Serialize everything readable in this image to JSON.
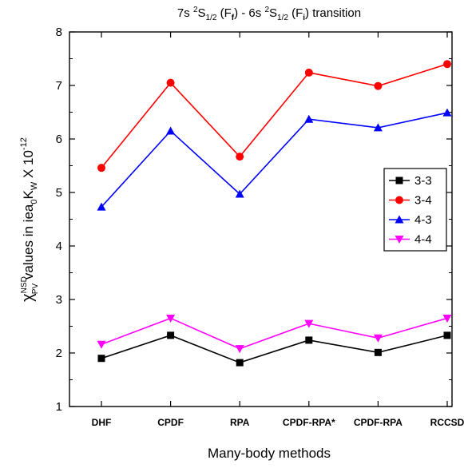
{
  "chart_data": {
    "type": "line",
    "title": "7s ²S₁/₂ (F_f) - 6s ²S₁/₂ (F_i) transition",
    "title_parts": {
      "lead": "7s ",
      "sup1": "2",
      "s1": "S",
      "sub1": "1/2",
      "mid1": " (F",
      "subf": "f",
      "mid2": ") - 6s ",
      "sup2": "2",
      "s2": "S",
      "sub2": "1/2",
      "mid3": " (F",
      "subi": "i",
      "tail": ") transition"
    },
    "xlabel": "Many-body methods",
    "ylabel": "χ_PV^NSD values in iea₀K_W X 10^-12",
    "ylabel_parts": {
      "chi": "χ",
      "sup_nsd": "NSD",
      "sub_pv": "PV",
      "mid": " values in iea",
      "sub0": "0",
      "k": "K",
      "subw": "W",
      "x10": " X 10",
      "exp": "-12"
    },
    "categories": [
      "DHF",
      "CPDF",
      "RPA",
      "CPDF-RPA*",
      "CPDF-RPA",
      "RCCSD"
    ],
    "ylim": [
      1,
      8
    ],
    "yticks": [
      "1",
      "2",
      "3",
      "4",
      "5",
      "6",
      "7",
      "8"
    ],
    "grid": false,
    "legend_position": "right",
    "series": [
      {
        "name": "3-3",
        "color": "#000000",
        "marker": "square",
        "values": [
          1.9,
          2.33,
          1.82,
          2.24,
          2.01,
          2.33
        ]
      },
      {
        "name": "3-4",
        "color": "#ff0000",
        "marker": "circle",
        "values": [
          5.46,
          7.05,
          5.67,
          7.24,
          6.99,
          7.4
        ]
      },
      {
        "name": "4-3",
        "color": "#0000ff",
        "marker": "triangle-up",
        "values": [
          4.73,
          6.15,
          4.97,
          6.37,
          6.21,
          6.49
        ]
      },
      {
        "name": "4-4",
        "color": "#ff00ff",
        "marker": "triangle-down",
        "values": [
          2.16,
          2.65,
          2.08,
          2.55,
          2.28,
          2.65
        ]
      }
    ]
  }
}
